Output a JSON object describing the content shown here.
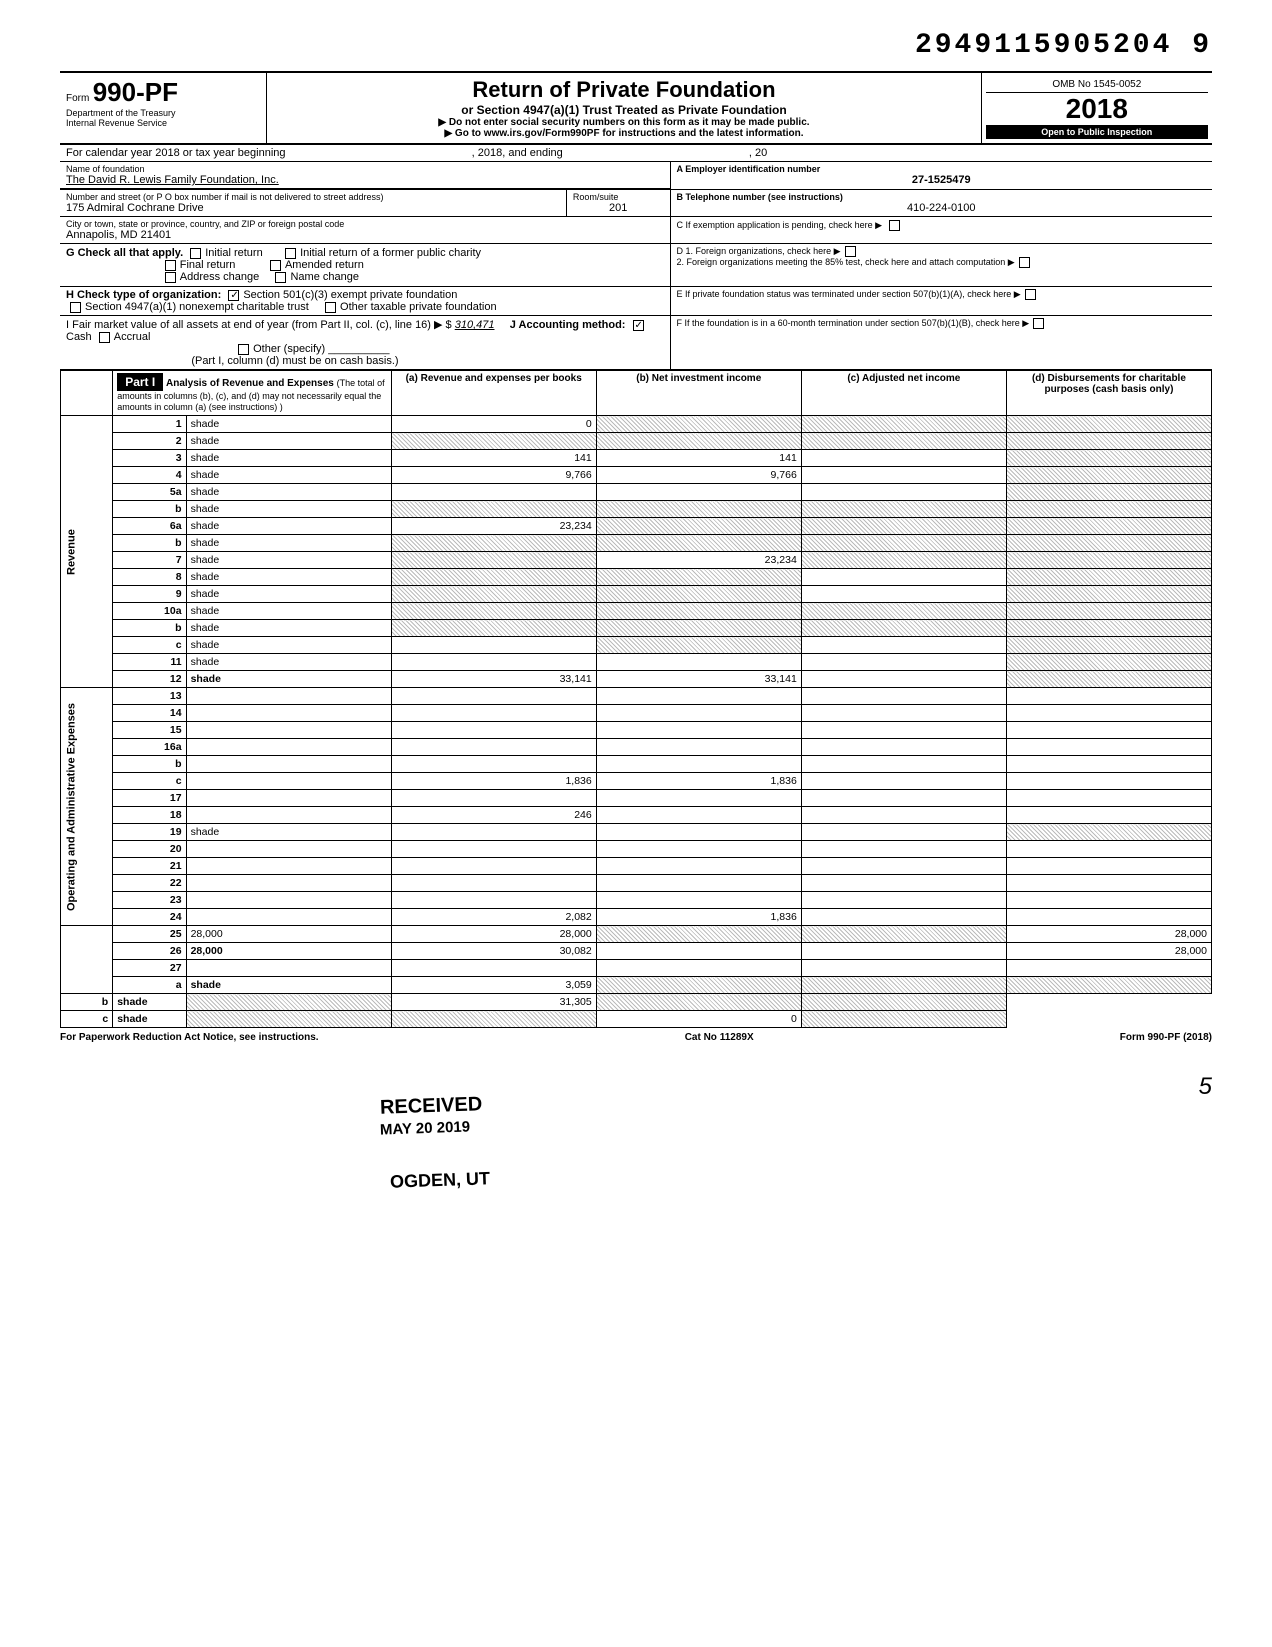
{
  "topcode": "2949115905204  9",
  "form": {
    "prefix": "Form",
    "number": "990-PF",
    "dept1": "Department of the Treasury",
    "dept2": "Internal Revenue Service"
  },
  "title": {
    "main": "Return of Private Foundation",
    "sub": "or Section 4947(a)(1) Trust Treated as Private Foundation",
    "instr1": "▶ Do not enter social security numbers on this form as it may be made public.",
    "instr2": "▶ Go to www.irs.gov/Form990PF for instructions and the latest information."
  },
  "omb": "OMB No 1545-0052",
  "year": "2018",
  "open": "Open to Public Inspection",
  "calyear": "For calendar year 2018 or tax year beginning",
  "calyear2": ", 2018, and ending",
  "calyear3": ", 20",
  "name_label": "Name of foundation",
  "name": "The David R. Lewis Family Foundation, Inc.",
  "addr_label": "Number and street (or P O box number if mail is not delivered to street address)",
  "addr": "175 Admiral Cochrane Drive",
  "room_label": "Room/suite",
  "room": "201",
  "city_label": "City or town, state or province, country, and ZIP or foreign postal code",
  "city": "Annapolis, MD 21401",
  "ein_label": "A  Employer identification number",
  "ein": "27-1525479",
  "tel_label": "B  Telephone number (see instructions)",
  "tel": "410-224-0100",
  "c_label": "C  If exemption application is pending, check here ▶",
  "g_label": "G  Check all that apply.",
  "g_opts": [
    "Initial return",
    "Initial return of a former public charity",
    "Final return",
    "Amended return",
    "Address change",
    "Name change"
  ],
  "d1": "D  1. Foreign organizations, check here",
  "d2": "2. Foreign organizations meeting the 85% test, check here and attach computation",
  "h_label": "H  Check type of organization:",
  "h_opts": [
    "Section 501(c)(3) exempt private foundation",
    "Section 4947(a)(1) nonexempt charitable trust",
    "Other taxable private foundation"
  ],
  "e_label": "E  If private foundation status was terminated under section 507(b)(1)(A), check here",
  "i_label": "I   Fair market value of all assets at end of year (from Part II, col. (c), line 16) ▶ $",
  "i_val": "310,471",
  "j_label": "J   Accounting method:",
  "j_opts": [
    "Cash",
    "Accrual",
    "Other (specify)"
  ],
  "j_note": "(Part I, column (d) must be on cash basis.)",
  "f_label": "F  If the foundation is in a 60-month termination under section 507(b)(1)(B), check here",
  "part1": "Part I",
  "part1_title": "Analysis of Revenue and Expenses",
  "part1_sub": "(The total of amounts in columns (b), (c), and (d) may not necessarily equal the amounts in column (a) (see instructions) )",
  "cols": {
    "a": "(a) Revenue and expenses per books",
    "b": "(b) Net investment income",
    "c": "(c) Adjusted net income",
    "d": "(d) Disbursements for charitable purposes (cash basis only)"
  },
  "vlabels": {
    "rev": "Revenue",
    "exp": "Operating and Administrative Expenses"
  },
  "rows": [
    {
      "n": "1",
      "d": "shade",
      "a": "0",
      "b": "shade",
      "c": "shade"
    },
    {
      "n": "2",
      "d": "shade",
      "a": "shade",
      "b": "shade",
      "c": "shade"
    },
    {
      "n": "3",
      "d": "shade",
      "a": "141",
      "b": "141",
      "c": ""
    },
    {
      "n": "4",
      "d": "shade",
      "a": "9,766",
      "b": "9,766",
      "c": ""
    },
    {
      "n": "5a",
      "d": "shade",
      "a": "",
      "b": "",
      "c": ""
    },
    {
      "n": "b",
      "d": "shade",
      "a": "shade",
      "b": "shade",
      "c": "shade"
    },
    {
      "n": "6a",
      "d": "shade",
      "a": "23,234",
      "b": "shade",
      "c": "shade"
    },
    {
      "n": "b",
      "d": "shade",
      "a": "shade",
      "b": "shade",
      "c": "shade"
    },
    {
      "n": "7",
      "d": "shade",
      "a": "shade",
      "b": "23,234",
      "c": "shade"
    },
    {
      "n": "8",
      "d": "shade",
      "a": "shade",
      "b": "shade",
      "c": ""
    },
    {
      "n": "9",
      "d": "shade",
      "a": "shade",
      "b": "shade",
      "c": ""
    },
    {
      "n": "10a",
      "d": "shade",
      "a": "shade",
      "b": "shade",
      "c": "shade"
    },
    {
      "n": "b",
      "d": "shade",
      "a": "shade",
      "b": "shade",
      "c": "shade"
    },
    {
      "n": "c",
      "d": "shade",
      "a": "",
      "b": "shade",
      "c": ""
    },
    {
      "n": "11",
      "d": "shade",
      "a": "",
      "b": "",
      "c": ""
    },
    {
      "n": "12",
      "d": "shade",
      "a": "33,141",
      "b": "33,141",
      "c": "",
      "bold": true
    },
    {
      "n": "13",
      "d": "",
      "a": "",
      "b": "",
      "c": ""
    },
    {
      "n": "14",
      "d": "",
      "a": "",
      "b": "",
      "c": ""
    },
    {
      "n": "15",
      "d": "",
      "a": "",
      "b": "",
      "c": ""
    },
    {
      "n": "16a",
      "d": "",
      "a": "",
      "b": "",
      "c": ""
    },
    {
      "n": "b",
      "d": "",
      "a": "",
      "b": "",
      "c": ""
    },
    {
      "n": "c",
      "d": "",
      "a": "1,836",
      "b": "1,836",
      "c": ""
    },
    {
      "n": "17",
      "d": "",
      "a": "",
      "b": "",
      "c": ""
    },
    {
      "n": "18",
      "d": "",
      "a": "246",
      "b": "",
      "c": ""
    },
    {
      "n": "19",
      "d": "shade",
      "a": "",
      "b": "",
      "c": ""
    },
    {
      "n": "20",
      "d": "",
      "a": "",
      "b": "",
      "c": ""
    },
    {
      "n": "21",
      "d": "",
      "a": "",
      "b": "",
      "c": ""
    },
    {
      "n": "22",
      "d": "",
      "a": "",
      "b": "",
      "c": ""
    },
    {
      "n": "23",
      "d": "",
      "a": "",
      "b": "",
      "c": ""
    },
    {
      "n": "24",
      "d": "",
      "a": "2,082",
      "b": "1,836",
      "c": "",
      "bold": true
    },
    {
      "n": "25",
      "d": "28,000",
      "a": "28,000",
      "b": "shade",
      "c": "shade"
    },
    {
      "n": "26",
      "d": "28,000",
      "a": "30,082",
      "b": "",
      "c": "",
      "bold": true
    },
    {
      "n": "27",
      "d": "",
      "a": "",
      "b": "",
      "c": "",
      "bold": true
    },
    {
      "n": "a",
      "d": "shade",
      "a": "3,059",
      "b": "shade",
      "c": "shade",
      "bold": true
    },
    {
      "n": "b",
      "d": "shade",
      "a": "shade",
      "b": "31,305",
      "c": "shade",
      "bold": true
    },
    {
      "n": "c",
      "d": "shade",
      "a": "shade",
      "b": "shade",
      "c": "0",
      "bold": true
    }
  ],
  "footer": {
    "left": "For Paperwork Reduction Act Notice, see instructions.",
    "mid": "Cat No 11289X",
    "right": "Form 990-PF (2018)"
  },
  "stamps": {
    "received": "RECEIVED",
    "date": "MAY 20 2019",
    "ogden": "OGDEN, UT"
  },
  "pagenum": "5"
}
